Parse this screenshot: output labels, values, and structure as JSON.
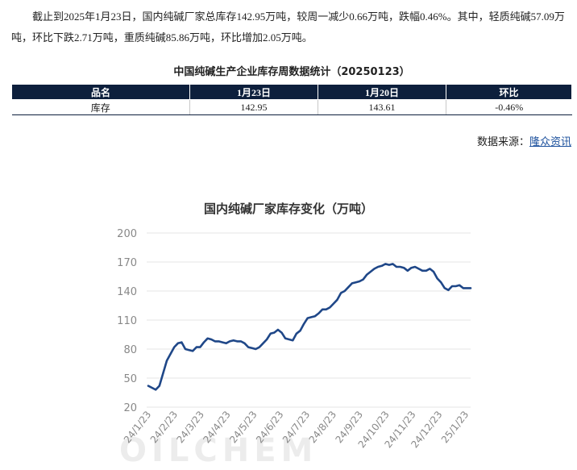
{
  "summary": "截止到2025年1月23日，国内纯碱厂家总库存142.95万吨，较周一减少0.66万吨，跌幅0.46%。其中，轻质纯碱57.09万吨，环比下跌2.71万吨，重质纯碱85.86万吨，环比增加2.05万吨。",
  "table": {
    "title": "中国纯碱生产企业库存周数据统计（20250123）",
    "headers": [
      "品名",
      "1月23日",
      "1月20日",
      "环比"
    ],
    "rows": [
      [
        "库存",
        "142.95",
        "143.61",
        "-0.46%"
      ]
    ]
  },
  "source": {
    "label": "数据来源：",
    "link": "隆众资讯"
  },
  "watermark": "OILCHEM",
  "chart_data": {
    "type": "line",
    "title": "国内纯碱厂家库存变化（万吨）",
    "ylim": [
      20,
      200
    ],
    "yticks": [
      20,
      50,
      80,
      110,
      140,
      170,
      200
    ],
    "xticks": [
      "24/1/23",
      "24/2/23",
      "24/3/23",
      "24/4/23",
      "24/5/23",
      "24/6/23",
      "24/7/23",
      "24/8/23",
      "24/9/23",
      "24/10/23",
      "24/11/23",
      "24/12/23",
      "25/1/23"
    ],
    "line_color": "#1f4788",
    "grid": true,
    "series": [
      {
        "values": [
          42,
          40,
          38,
          42,
          55,
          68,
          75,
          82,
          86,
          87,
          80,
          79,
          78,
          82,
          82,
          87,
          91,
          90,
          88,
          88,
          87,
          86,
          88,
          89,
          88,
          88,
          86,
          82,
          81,
          80,
          82,
          86,
          90,
          96,
          97,
          100,
          97,
          91,
          90,
          89,
          96,
          99,
          106,
          112,
          113,
          114,
          117,
          121,
          121,
          123,
          127,
          131,
          138,
          140,
          144,
          148,
          149,
          150,
          152,
          157,
          160,
          163,
          165,
          166,
          168,
          167,
          168,
          165,
          165,
          164,
          161,
          164,
          165,
          163,
          161,
          161,
          163,
          160,
          153,
          149,
          143,
          141,
          145,
          145,
          146,
          143,
          143,
          143
        ]
      }
    ]
  }
}
